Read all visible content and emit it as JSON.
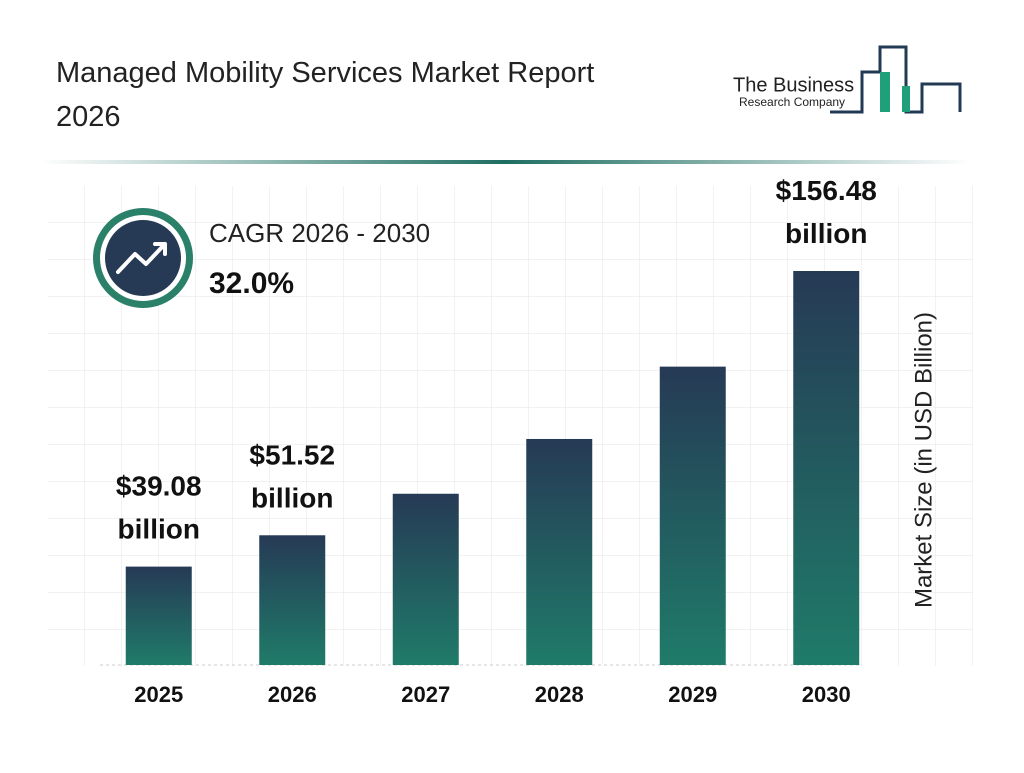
{
  "chart_data": {
    "type": "bar",
    "title": "Managed Mobility Services Market Report 2026",
    "logo": {
      "line1": "The Business",
      "line2": "Research Company"
    },
    "cagr_label": "CAGR 2026 - 2030",
    "cagr_value": "32.0%",
    "y_label": "Market Size (in USD Billion)",
    "categories": [
      "2025",
      "2026",
      "2027",
      "2028",
      "2029",
      "2030"
    ],
    "values": [
      39.08,
      51.52,
      68.01,
      89.77,
      118.5,
      156.48
    ],
    "value_labels": [
      "$39.08 billion",
      "$51.52 billion",
      null,
      null,
      null,
      "$156.48 billion"
    ],
    "colors": {
      "top": "#263a55",
      "bottom": "#1f7b69"
    }
  }
}
